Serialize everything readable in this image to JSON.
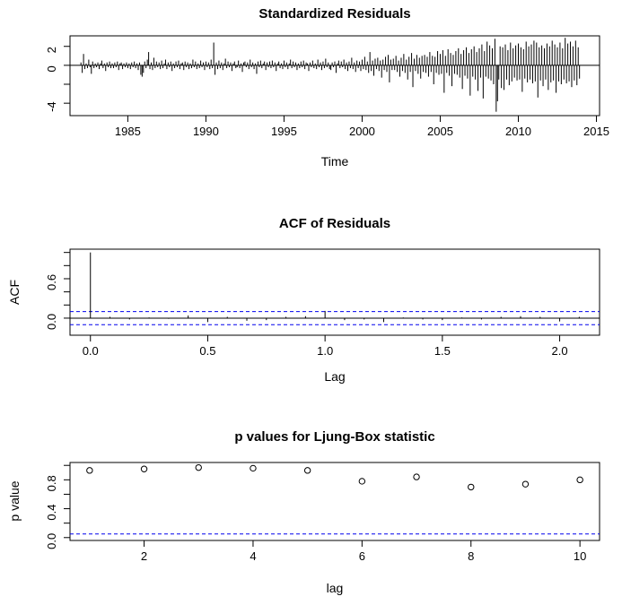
{
  "colors": {
    "foreground": "#000000",
    "background": "#ffffff",
    "dashed_line": "#0000ee"
  },
  "chart_data": [
    {
      "type": "bar",
      "title": "Standardized Residuals",
      "xlabel": "Time",
      "ylabel": "",
      "x_start": 1982.0,
      "frequency": 12,
      "xlim": [
        1981.3,
        2015.2
      ],
      "ylim": [
        -5.31,
        3.11
      ],
      "x_ticks": [
        1985,
        1990,
        1995,
        2000,
        2005,
        2010,
        2015
      ],
      "y_ticks": [
        {
          "v": 2,
          "label": "2"
        },
        {
          "v": 0,
          "label": "0"
        },
        {
          "v": -2,
          "label": ""
        },
        {
          "v": -4,
          "label": "-4"
        }
      ],
      "values": [
        0.3,
        -0.8,
        1.2,
        -0.4,
        0.2,
        -0.3,
        0.6,
        -0.2,
        -0.9,
        0.4,
        -0.3,
        0.2,
        -0.2,
        0.3,
        -0.4,
        0.2,
        0.5,
        -0.3,
        0.2,
        -0.6,
        0.3,
        -0.2,
        0.4,
        -0.3,
        0.2,
        -0.3,
        0.3,
        -0.2,
        0.4,
        -0.5,
        0.2,
        0.3,
        -0.4,
        0.2,
        -0.2,
        0.3,
        -0.3,
        0.2,
        -0.4,
        0.3,
        -0.2,
        0.4,
        -0.3,
        0.2,
        -0.5,
        0.3,
        -1.0,
        -1.2,
        -0.8,
        0.4,
        -0.3,
        0.6,
        1.4,
        -0.4,
        0.3,
        -0.5,
        0.8,
        -0.3,
        0.4,
        -0.2,
        0.3,
        -0.4,
        0.5,
        -0.3,
        0.2,
        0.6,
        -0.4,
        0.3,
        -0.2,
        0.4,
        -0.6,
        0.2,
        -0.3,
        0.4,
        -0.2,
        0.5,
        -0.4,
        0.2,
        0.3,
        -0.5,
        0.4,
        -0.2,
        0.3,
        -0.4,
        0.2,
        -0.3,
        0.6,
        -0.2,
        0.4,
        -0.4,
        0.2,
        -0.3,
        0.5,
        -0.2,
        0.3,
        -0.5,
        0.4,
        -0.2,
        0.3,
        -0.4,
        0.6,
        -0.3,
        2.4,
        -1.0,
        0.3,
        -0.4,
        0.5,
        -0.3,
        0.3,
        -0.5,
        0.2,
        0.7,
        -0.3,
        0.4,
        -0.2,
        0.3,
        -0.6,
        0.2,
        0.4,
        -0.3,
        -0.2,
        0.5,
        -0.3,
        0.2,
        -0.7,
        0.3,
        0.4,
        -0.2,
        0.3,
        -0.4,
        0.6,
        -0.2,
        0.3,
        -0.4,
        0.2,
        -0.9,
        0.4,
        -0.2,
        0.5,
        -0.3,
        0.2,
        0.4,
        -0.5,
        0.3,
        -0.2,
        0.4,
        -0.3,
        0.5,
        -0.2,
        0.3,
        -0.6,
        0.2,
        0.4,
        -0.3,
        0.2,
        -0.4,
        0.5,
        -0.2,
        0.3,
        -0.4,
        0.2,
        0.6,
        -0.3,
        0.4,
        -0.2,
        0.3,
        -0.5,
        0.2,
        -0.3,
        0.4,
        -0.2,
        0.5,
        -0.4,
        0.3,
        0.2,
        -0.6,
        0.3,
        -0.2,
        0.5,
        -0.3,
        0.2,
        -0.4,
        0.6,
        -0.2,
        0.3,
        -0.5,
        0.4,
        -0.3,
        0.7,
        -0.2,
        0.3,
        -0.4,
        -0.5,
        0.3,
        -0.2,
        0.4,
        -0.8,
        0.2,
        0.5,
        -0.3,
        0.4,
        -0.2,
        0.6,
        -0.4,
        0.3,
        -0.6,
        0.4,
        -0.3,
        0.8,
        -0.4,
        0.3,
        -0.7,
        0.5,
        -0.3,
        0.4,
        -0.6,
        0.6,
        -0.4,
        0.9,
        -0.5,
        0.4,
        -0.8,
        1.4,
        -0.6,
        0.5,
        -1.1,
        0.7,
        -0.4,
        0.8,
        -0.6,
        0.5,
        -1.3,
        0.6,
        -0.5,
        0.9,
        -0.7,
        1.1,
        -1.8,
        0.6,
        -0.5,
        0.7,
        -0.5,
        1.0,
        -0.7,
        0.5,
        -1.2,
        0.8,
        -0.6,
        1.2,
        -0.8,
        0.6,
        -1.5,
        0.9,
        -0.7,
        1.3,
        -2.3,
        0.7,
        -0.6,
        1.1,
        -0.9,
        0.8,
        -1.4,
        1.0,
        -0.7,
        1.1,
        -0.8,
        0.9,
        -1.2,
        1.4,
        -0.7,
        1.0,
        -2.0,
        0.9,
        -0.8,
        1.5,
        -1.0,
        1.2,
        -0.9,
        1.6,
        -2.9,
        1.0,
        -0.8,
        1.7,
        -1.1,
        1.3,
        -2.2,
        1.1,
        -0.9,
        1.5,
        -1.0,
        1.8,
        -1.3,
        1.2,
        -2.5,
        1.6,
        -1.1,
        1.9,
        -1.4,
        1.3,
        -3.2,
        1.7,
        -1.2,
        2.0,
        -1.5,
        1.4,
        -2.7,
        1.8,
        -1.3,
        2.2,
        -3.5,
        1.5,
        -1.2,
        2.5,
        -1.4,
        2.1,
        -1.6,
        1.8,
        -2.0,
        2.8,
        -4.9,
        -3.8,
        -1.5,
        2.0,
        -2.4,
        1.9,
        -2.6,
        2.2,
        -1.5,
        1.6,
        -2.1,
        2.4,
        -1.7,
        1.8,
        -1.3,
        2.1,
        -1.6,
        2.3,
        -1.5,
        1.9,
        -2.8,
        1.7,
        -1.4,
        2.5,
        -1.8,
        2.0,
        -1.5,
        2.2,
        -1.9,
        2.6,
        -1.7,
        2.4,
        -3.4,
        1.9,
        -1.6,
        2.1,
        -2.2,
        1.8,
        -1.5,
        2.3,
        -2.6,
        2.0,
        -1.8,
        2.6,
        -1.6,
        2.2,
        -2.9,
        1.9,
        -1.7,
        2.4,
        -2.0,
        1.8,
        -1.5,
        2.9,
        -1.9,
        2.3,
        -1.7,
        2.5,
        -2.3,
        2.0,
        -1.6,
        2.6,
        -2.1,
        1.9,
        -1.4
      ]
    },
    {
      "type": "bar",
      "title": "ACF of Residuals",
      "xlabel": "Lag",
      "ylabel": "ACF",
      "lag_step_years": 0.0833333,
      "xlim": [
        -0.087,
        2.17
      ],
      "ylim": [
        -0.26,
        1.05
      ],
      "x_ticks": [
        {
          "v": 0.0,
          "label": "0.0"
        },
        {
          "v": 0.5,
          "label": "0.5"
        },
        {
          "v": 1.0,
          "label": "1.0"
        },
        {
          "v": 1.5,
          "label": "1.5"
        },
        {
          "v": 2.0,
          "label": "2.0"
        }
      ],
      "y_ticks": [
        {
          "v": 0.0,
          "label": "0.0"
        },
        {
          "v": 0.2,
          "label": ""
        },
        {
          "v": 0.4,
          "label": ""
        },
        {
          "v": 0.6,
          "label": "0.6"
        },
        {
          "v": 0.8,
          "label": ""
        },
        {
          "v": 1.0,
          "label": ""
        }
      ],
      "confidence_bound": 0.1,
      "acf": [
        1.0,
        0.02,
        -0.02,
        0.01,
        -0.01,
        0.04,
        -0.06,
        0.02,
        -0.04,
        -0.03,
        0.02,
        0.03,
        0.11,
        -0.03,
        -0.02,
        -0.06,
        0.01,
        -0.02,
        -0.03,
        0.01,
        -0.02,
        0.02,
        0.03,
        0.02,
        -0.05,
        0.02
      ]
    },
    {
      "type": "scatter",
      "title": "p values for Ljung-Box statistic",
      "xlabel": "lag",
      "ylabel": "p value",
      "xlim": [
        0.64,
        10.36
      ],
      "ylim": [
        -0.04,
        1.04
      ],
      "x_ticks": [
        2,
        4,
        6,
        8,
        10
      ],
      "y_ticks": [
        {
          "v": 0.0,
          "label": "0.0"
        },
        {
          "v": 0.2,
          "label": ""
        },
        {
          "v": 0.4,
          "label": "0.4"
        },
        {
          "v": 0.6,
          "label": ""
        },
        {
          "v": 0.8,
          "label": "0.8"
        },
        {
          "v": 1.0,
          "label": ""
        }
      ],
      "significance_level": 0.05,
      "x": [
        1,
        2,
        3,
        4,
        5,
        6,
        7,
        8,
        9,
        10
      ],
      "y": [
        0.93,
        0.95,
        0.97,
        0.96,
        0.93,
        0.78,
        0.84,
        0.7,
        0.74,
        0.8
      ]
    }
  ]
}
